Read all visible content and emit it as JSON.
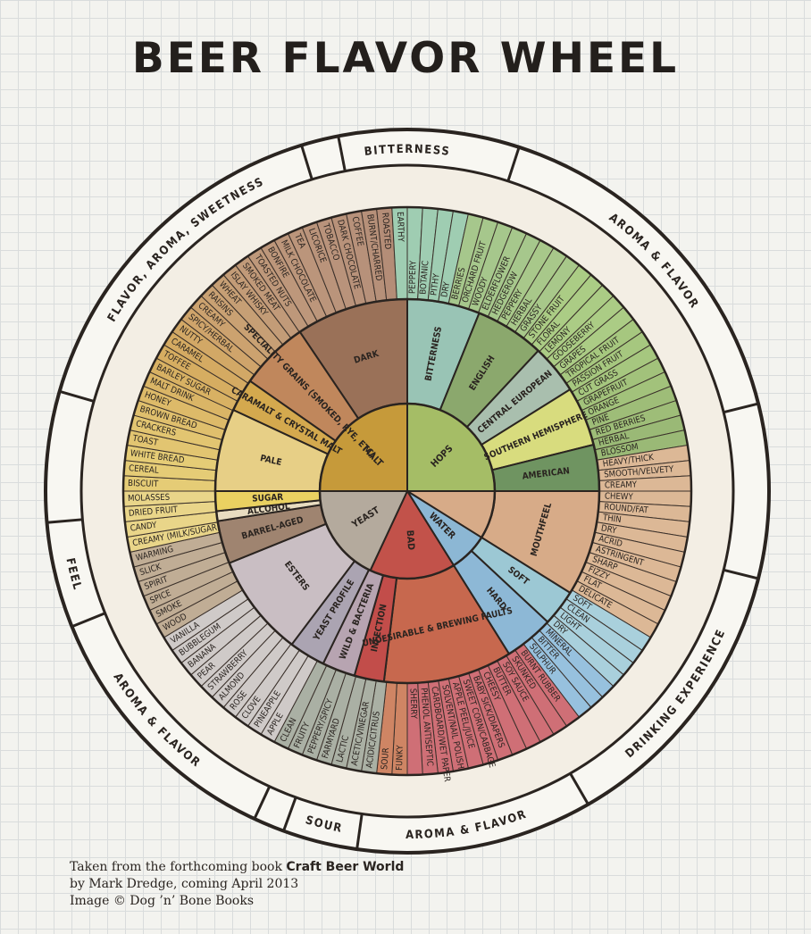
{
  "title": "BEER FLAVOR WHEEL",
  "credits": {
    "line1_prefix": "Taken from the forthcoming book ",
    "line1_book": "Craft Beer World",
    "line2": "by Mark Dredge, coming April 2013",
    "line3": "Image © Dog ’n’ Bone Books"
  },
  "rim_labels": [
    {
      "text": "BITTERNESS",
      "from": -14,
      "to": 14
    },
    {
      "text": "AROMA & FLAVOR",
      "from": 22,
      "to": 72
    },
    {
      "text": "DRINKING EXPERIENCE",
      "from": 108,
      "to": 146
    },
    {
      "text": "AROMA & FLAVOR",
      "from": 154,
      "to": 186
    },
    {
      "text": "SOUR",
      "from": 189,
      "to": 199
    },
    {
      "text": "AROMA & FLAVOR",
      "from": 209,
      "to": 246
    },
    {
      "text": "FEEL",
      "from": 250,
      "to": 262
    },
    {
      "text": "FLAVOR, AROMA, SWEETNESS",
      "from": 290,
      "to": 345
    }
  ],
  "core": [
    {
      "name": "MALT",
      "from": -90,
      "to": 0,
      "color": "#c69a3a"
    },
    {
      "name": "HOPS",
      "from": 0,
      "to": 90,
      "color": "#a5bd66"
    },
    {
      "name": "MOUTHFEEL",
      "from": 90,
      "to": 122,
      "color": "#d7ab88"
    },
    {
      "name": "WATER",
      "from": 122,
      "to": 148,
      "color": "#8cb7d4"
    },
    {
      "name": "BAD",
      "from": 148,
      "to": 205,
      "color": "#c2524a"
    },
    {
      "name": "YEAST",
      "from": 205,
      "to": 270,
      "color": "#b4aa9d"
    }
  ],
  "middle": [
    {
      "name": "DARK",
      "from": -34,
      "to": 0,
      "color": "#9a7158"
    },
    {
      "name": "SPECIALITY GRAINS (SMOKED, RYE, ETC)",
      "from": -55,
      "to": -34,
      "color": "#c0875c"
    },
    {
      "name": "CARAMALT & CRYSTAL MALT",
      "from": -65,
      "to": -55,
      "color": "#d4a94e"
    },
    {
      "name": "PALE",
      "from": -90,
      "to": -65,
      "color": "#e7cf86"
    },
    {
      "name": "BITTERNESS",
      "from": 0,
      "to": 22,
      "color": "#99c4b5"
    },
    {
      "name": "ENGLISH",
      "from": 22,
      "to": 43,
      "color": "#8ba86d"
    },
    {
      "name": "CENTRAL EUROPEAN",
      "from": 43,
      "to": 58,
      "color": "#a9bfae"
    },
    {
      "name": "SOUTHERN HEMISPHERE",
      "from": 58,
      "to": 76,
      "color": "#d8dc7e"
    },
    {
      "name": "AMERICAN",
      "from": 76,
      "to": 90,
      "color": "#6f9461"
    },
    {
      "name": "MOUTHFEEL",
      "from": 90,
      "to": 122,
      "color": "#d7ab88"
    },
    {
      "name": "SOFT",
      "from": 122,
      "to": 133,
      "color": "#9cc8d4"
    },
    {
      "name": "HARD",
      "from": 133,
      "to": 148,
      "color": "#8db8d6"
    },
    {
      "name": "UNDESIRABLE & BREWING FAULTS",
      "from": 148,
      "to": 187,
      "color": "#c7684e"
    },
    {
      "name": "INFECTION",
      "from": 187,
      "to": 196,
      "color": "#c24d4a"
    },
    {
      "name": "WILD & BACTERIA",
      "from": 196,
      "to": 206,
      "color": "#b7a4b1"
    },
    {
      "name": "YEAST PROFILE",
      "from": 206,
      "to": 217,
      "color": "#aba4b2"
    },
    {
      "name": "ESTERS",
      "from": 217,
      "to": 248,
      "color": "#c9bec3"
    },
    {
      "name": "BARREL-AGED",
      "from": 248,
      "to": 261,
      "color": "#9f8470"
    },
    {
      "name": "ALCOHOL",
      "from": 261,
      "to": 264,
      "color": "#e8dcc0"
    },
    {
      "name": "SUGAR",
      "from": 264,
      "to": 270,
      "color": "#ead161"
    }
  ],
  "outer": [
    {
      "label": "BISCUIT",
      "color": "#e5cc76"
    },
    {
      "label": "CEREAL",
      "color": "#e5cc76"
    },
    {
      "label": "WHITE BREAD",
      "color": "#e5cc76"
    },
    {
      "label": "TOAST",
      "color": "#e2c571"
    },
    {
      "label": "CRACKERS",
      "color": "#e2c571"
    },
    {
      "label": "BROWN BREAD",
      "color": "#dfbf6d"
    },
    {
      "label": "HONEY",
      "color": "#ddba69"
    },
    {
      "label": "MALT DRINK",
      "color": "#dab566"
    },
    {
      "label": "BARLEY SUGAR",
      "color": "#d8b163"
    },
    {
      "label": "TOFFEE",
      "color": "#d6ad61"
    },
    {
      "label": "CARAMEL",
      "color": "#d4aa62"
    },
    {
      "label": "NUTTY",
      "color": "#d2a866"
    },
    {
      "label": "SPICY/HERBAL",
      "color": "#cfa46b"
    },
    {
      "label": "CREAMY",
      "color": "#cca26f"
    },
    {
      "label": "RAISINS",
      "color": "#c9a173"
    },
    {
      "label": "WHEAT",
      "color": "#c69f75"
    },
    {
      "label": "ISLAY WHISKY",
      "color": "#c39c77"
    },
    {
      "label": "SMOKED MEAT",
      "color": "#c19a79"
    },
    {
      "label": "TOASTED NUTS",
      "color": "#be987a"
    },
    {
      "label": "BONFIRE",
      "color": "#bd977b"
    },
    {
      "label": "MILK CHOCOLATE",
      "color": "#bc967b"
    },
    {
      "label": "TEA",
      "color": "#bb957b"
    },
    {
      "label": "LICORICE",
      "color": "#ba947b"
    },
    {
      "label": "TOBACCO",
      "color": "#b9937b"
    },
    {
      "label": "DARK CHOCOLATE",
      "color": "#b8927a"
    },
    {
      "label": "COFFEE",
      "color": "#b7917a"
    },
    {
      "label": "BURNT/CHARRED",
      "color": "#b69079"
    },
    {
      "label": "ROASTED",
      "color": "#b48d77"
    },
    {
      "label": "EARTHY",
      "color": "#9fcdb2"
    },
    {
      "label": "PEPPERY",
      "color": "#9fcdb2"
    },
    {
      "label": "BOTANIC",
      "color": "#9fcdb2"
    },
    {
      "label": "PITHY",
      "color": "#9fcdb2"
    },
    {
      "label": "DRY",
      "color": "#9fcdb2"
    },
    {
      "label": "BERRIES",
      "color": "#a6c78c"
    },
    {
      "label": "ORCHARD FRUIT",
      "color": "#a6c78c"
    },
    {
      "label": "WOODY",
      "color": "#a6c78c"
    },
    {
      "label": "ELDERFLOWER",
      "color": "#a6c78c"
    },
    {
      "label": "HEDGEROW",
      "color": "#a6c78c"
    },
    {
      "label": "PEPPERY",
      "color": "#a8c88a"
    },
    {
      "label": "HERBAL",
      "color": "#a8c88a"
    },
    {
      "label": "GRASSY",
      "color": "#a8c88a"
    },
    {
      "label": "STONE FRUIT",
      "color": "#abcc85"
    },
    {
      "label": "FLORAL",
      "color": "#abcc85"
    },
    {
      "label": "LEMONY",
      "color": "#abcc85"
    },
    {
      "label": "GOOSEBERRY",
      "color": "#abcc85"
    },
    {
      "label": "GRAPES",
      "color": "#abcc85"
    },
    {
      "label": "TROPICAL FRUIT",
      "color": "#a6c77f"
    },
    {
      "label": "PASSION FRUIT",
      "color": "#a6c77f"
    },
    {
      "label": "CUT GRASS",
      "color": "#a6c77f"
    },
    {
      "label": "GRAPEFRUIT",
      "color": "#a2c27b"
    },
    {
      "label": "ORANGE",
      "color": "#a2c27b"
    },
    {
      "label": "PINE",
      "color": "#9ebd78"
    },
    {
      "label": "RED BERRIES",
      "color": "#9ebd78"
    },
    {
      "label": "HERBAL",
      "color": "#9ab976"
    },
    {
      "label": "BLOSSOM",
      "color": "#9ab976"
    },
    {
      "label": "HEAVY/THICK",
      "color": "#dcb896"
    },
    {
      "label": "SMOOTH/VELVETY",
      "color": "#dcb896"
    },
    {
      "label": "CREAMY",
      "color": "#dcb896"
    },
    {
      "label": "CHEWY",
      "color": "#dcb896"
    },
    {
      "label": "ROUND/FAT",
      "color": "#dcb896"
    },
    {
      "label": "THIN",
      "color": "#dcb896"
    },
    {
      "label": "DRY",
      "color": "#dcb896"
    },
    {
      "label": "ACRID",
      "color": "#dcb896"
    },
    {
      "label": "ASTRINGENT",
      "color": "#dcb896"
    },
    {
      "label": "SHARP",
      "color": "#dcb896"
    },
    {
      "label": "FIZZY",
      "color": "#dcb896"
    },
    {
      "label": "FLAT",
      "color": "#dcb896"
    },
    {
      "label": "DELICATE",
      "color": "#dcb896"
    },
    {
      "label": "SOFT",
      "color": "#a9d0dc"
    },
    {
      "label": "CLEAN",
      "color": "#a9d0dc"
    },
    {
      "label": "LIGHT",
      "color": "#a9d0dc"
    },
    {
      "label": "DRY",
      "color": "#a9d0dc"
    },
    {
      "label": "MINERAL",
      "color": "#97c1de"
    },
    {
      "label": "BITTER",
      "color": "#97c1de"
    },
    {
      "label": "SULPHUR",
      "color": "#97c1de"
    },
    {
      "label": "BURNT RUBBER",
      "color": "#cf6f76"
    },
    {
      "label": "SKUNKED",
      "color": "#cf6f76"
    },
    {
      "label": "SOY SAUCE",
      "color": "#cf6f76"
    },
    {
      "label": "BUTTER",
      "color": "#cf6f76"
    },
    {
      "label": "CHEESY",
      "color": "#cf6f76"
    },
    {
      "label": "BABY SICK/DIAPERS",
      "color": "#cf6f76"
    },
    {
      "label": "SWEET CORN/CABBAGE",
      "color": "#cf6f76"
    },
    {
      "label": "APPLE PEEL/JUICE",
      "color": "#cf6f76"
    },
    {
      "label": "SOLVENT/NAIL POLISH",
      "color": "#cf6f76"
    },
    {
      "label": "CARDBOARD/WET PAPER",
      "color": "#cf6f76"
    },
    {
      "label": "PHENOL ANTISEPTIC",
      "color": "#cf6f76"
    },
    {
      "label": "SHERRY",
      "color": "#cf6f76"
    },
    {
      "label": "FUNKY",
      "color": "#cf8564"
    },
    {
      "label": "SOUR",
      "color": "#cf8564"
    },
    {
      "label": "ACIDIC/CITRUS",
      "color": "#aab0a4"
    },
    {
      "label": "ACETIC/VINEGAR",
      "color": "#aab0a4"
    },
    {
      "label": "LACTIC",
      "color": "#aab0a4"
    },
    {
      "label": "FARMYARD",
      "color": "#aab0a4"
    },
    {
      "label": "PEPPERY/SPICY",
      "color": "#aab0a4"
    },
    {
      "label": "FRUITY",
      "color": "#aab0a4"
    },
    {
      "label": "CLEAN",
      "color": "#aab0a4"
    },
    {
      "label": "APPLE",
      "color": "#cfcac8"
    },
    {
      "label": "PINEAPPLE",
      "color": "#cfcac8"
    },
    {
      "label": "CLOVE",
      "color": "#cfcac8"
    },
    {
      "label": "ROSE",
      "color": "#cfcac8"
    },
    {
      "label": "ALMOND",
      "color": "#cfcac8"
    },
    {
      "label": "STRAWBERRY",
      "color": "#cfcac8"
    },
    {
      "label": "PEAR",
      "color": "#cfcac8"
    },
    {
      "label": "BANANA",
      "color": "#cfcac8"
    },
    {
      "label": "BUBBLEGUM",
      "color": "#cfcac8"
    },
    {
      "label": "VANILLA",
      "color": "#cfcac8"
    },
    {
      "label": "WOOD",
      "color": "#c0ad95"
    },
    {
      "label": "SMOKE",
      "color": "#c0ad95"
    },
    {
      "label": "SPICE",
      "color": "#c0ad95"
    },
    {
      "label": "SPIRIT",
      "color": "#c0ad95"
    },
    {
      "label": "SLICK",
      "color": "#c0ad95"
    },
    {
      "label": "WARMING",
      "color": "#c0ad95"
    },
    {
      "label": "CREAMY (MILK/SUGAR)",
      "color": "#e9d589"
    },
    {
      "label": "CANDY",
      "color": "#e9d589"
    },
    {
      "label": "DRIED FRUIT",
      "color": "#e9d589"
    },
    {
      "label": "MOLASSES",
      "color": "#e9d589"
    }
  ]
}
